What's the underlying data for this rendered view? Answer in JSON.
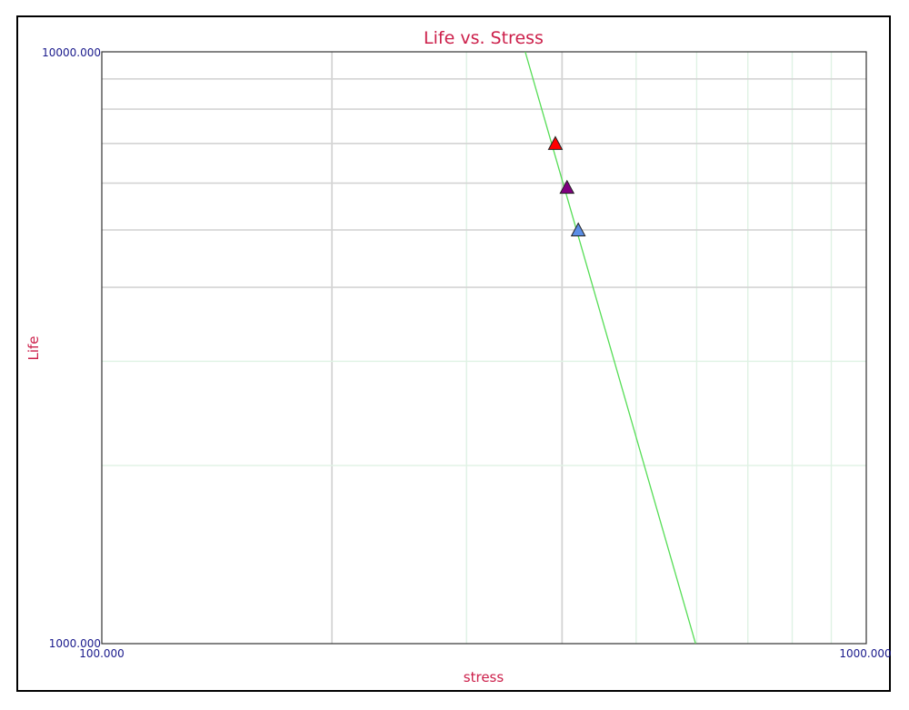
{
  "chart_data": {
    "type": "scatter",
    "title": "Life vs. Stress",
    "xlabel": "stress",
    "ylabel": "Life",
    "x_scale": "log",
    "y_scale": "log",
    "xlim": [
      100,
      1000
    ],
    "ylim": [
      1000,
      10000
    ],
    "x_tick_labels": [
      "100.000",
      "1000.000"
    ],
    "y_tick_labels": [
      "10000.000",
      "1000.000"
    ],
    "grid": true,
    "series": [
      {
        "type": "line",
        "color": "#55dd55",
        "points": [
          [
            358,
            10000
          ],
          [
            598,
            1000
          ]
        ]
      },
      {
        "type": "points",
        "marker": "triangle",
        "points": [
          {
            "x": 392,
            "y": 7000,
            "color": "#ff0000"
          },
          {
            "x": 406,
            "y": 5900,
            "color": "#800080"
          },
          {
            "x": 420,
            "y": 5000,
            "color": "#5b8ee6"
          }
        ]
      }
    ]
  }
}
